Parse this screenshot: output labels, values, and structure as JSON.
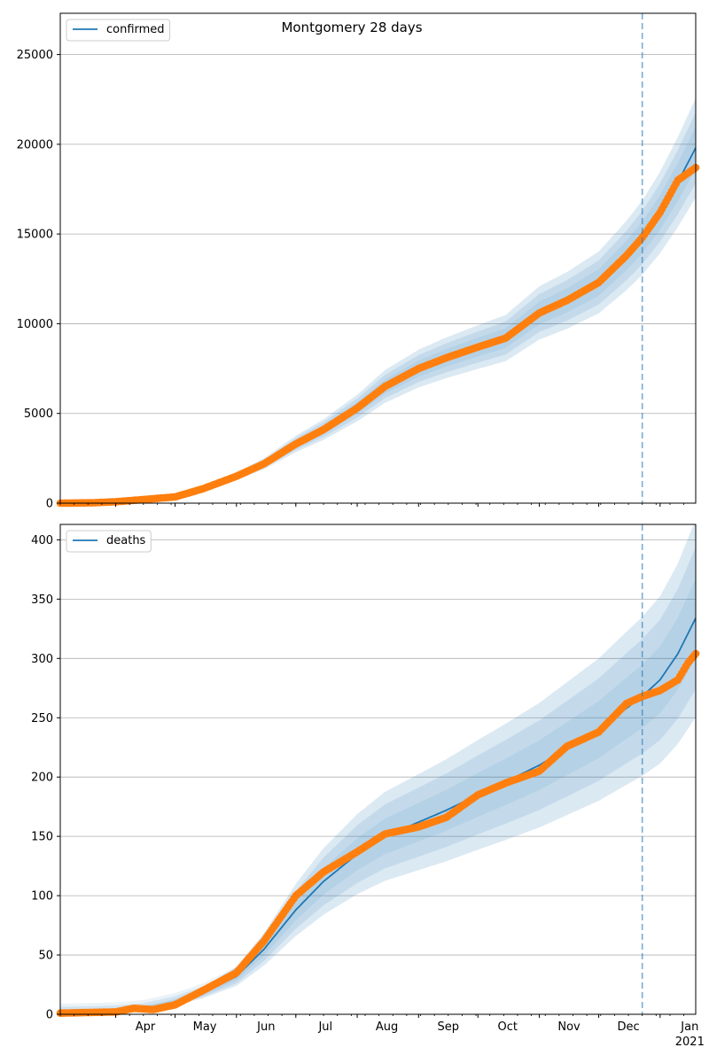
{
  "title": "Montgomery 28 days",
  "colors": {
    "model": "#1f77b4",
    "observed": "#ff7f0e",
    "band": "#1f77b4",
    "grid": "#b0b0b0",
    "forecast_line": "#1f77b4"
  },
  "x_axis": {
    "month_labels": [
      "Apr",
      "May",
      "Jun",
      "Jul",
      "Aug",
      "Sep",
      "Oct",
      "Nov",
      "Dec",
      "Jan"
    ],
    "year_label": "2021",
    "start_date": "2020-03-04",
    "end_date": "2021-01-19",
    "forecast_start": "2020-12-23"
  },
  "chart_data": [
    {
      "type": "line",
      "title": "Montgomery 28 days",
      "legend": "confirmed",
      "legend_position": "top-left",
      "grid": "horizontal",
      "ylim": [
        0,
        27300
      ],
      "yticks": [
        0,
        5000,
        10000,
        15000,
        20000,
        25000
      ],
      "model_points": [
        [
          "2020-03-04",
          0
        ],
        [
          "2020-03-20",
          20
        ],
        [
          "2020-04-01",
          80
        ],
        [
          "2020-04-15",
          200
        ],
        [
          "2020-05-01",
          350
        ],
        [
          "2020-05-15",
          800
        ],
        [
          "2020-06-01",
          1500
        ],
        [
          "2020-06-15",
          2200
        ],
        [
          "2020-07-01",
          3300
        ],
        [
          "2020-07-15",
          4100
        ],
        [
          "2020-08-01",
          5300
        ],
        [
          "2020-08-15",
          6500
        ],
        [
          "2020-09-01",
          7500
        ],
        [
          "2020-09-15",
          8100
        ],
        [
          "2020-10-01",
          8700
        ],
        [
          "2020-10-15",
          9200
        ],
        [
          "2020-11-01",
          10600
        ],
        [
          "2020-11-15",
          11300
        ],
        [
          "2020-12-01",
          12300
        ],
        [
          "2020-12-15",
          13800
        ],
        [
          "2020-12-23",
          14800
        ],
        [
          "2021-01-01",
          16200
        ],
        [
          "2021-01-10",
          17900
        ],
        [
          "2021-01-19",
          19800
        ]
      ],
      "band_halfwidth_fraction": [
        0.06,
        0.1,
        0.14
      ],
      "observed_points": [
        [
          "2020-03-04",
          0
        ],
        [
          "2020-03-20",
          20
        ],
        [
          "2020-04-01",
          80
        ],
        [
          "2020-04-15",
          200
        ],
        [
          "2020-05-01",
          350
        ],
        [
          "2020-05-15",
          800
        ],
        [
          "2020-06-01",
          1500
        ],
        [
          "2020-06-15",
          2200
        ],
        [
          "2020-07-01",
          3300
        ],
        [
          "2020-07-15",
          4100
        ],
        [
          "2020-08-01",
          5300
        ],
        [
          "2020-08-15",
          6500
        ],
        [
          "2020-09-01",
          7500
        ],
        [
          "2020-09-15",
          8100
        ],
        [
          "2020-10-01",
          8700
        ],
        [
          "2020-10-15",
          9200
        ],
        [
          "2020-11-01",
          10600
        ],
        [
          "2020-11-15",
          11300
        ],
        [
          "2020-12-01",
          12300
        ],
        [
          "2020-12-15",
          13800
        ],
        [
          "2020-12-23",
          14800
        ],
        [
          "2021-01-01",
          16200
        ],
        [
          "2021-01-10",
          18000
        ],
        [
          "2021-01-19",
          18700
        ]
      ]
    },
    {
      "type": "line",
      "legend": "deaths",
      "legend_position": "top-left",
      "grid": "horizontal",
      "ylim": [
        0,
        413
      ],
      "yticks": [
        0,
        50,
        100,
        150,
        200,
        250,
        300,
        350,
        400
      ],
      "model_points": [
        [
          "2020-03-04",
          1
        ],
        [
          "2020-04-01",
          2
        ],
        [
          "2020-04-15",
          4
        ],
        [
          "2020-05-01",
          10
        ],
        [
          "2020-05-15",
          18
        ],
        [
          "2020-06-01",
          32
        ],
        [
          "2020-06-15",
          55
        ],
        [
          "2020-07-01",
          88
        ],
        [
          "2020-07-15",
          112
        ],
        [
          "2020-08-01",
          135
        ],
        [
          "2020-08-15",
          150
        ],
        [
          "2020-09-01",
          162
        ],
        [
          "2020-09-15",
          172
        ],
        [
          "2020-10-01",
          185
        ],
        [
          "2020-10-15",
          196
        ],
        [
          "2020-11-01",
          210
        ],
        [
          "2020-11-15",
          224
        ],
        [
          "2020-12-01",
          240
        ],
        [
          "2020-12-15",
          258
        ],
        [
          "2020-12-23",
          268
        ],
        [
          "2021-01-01",
          282
        ],
        [
          "2021-01-10",
          304
        ],
        [
          "2021-01-19",
          334
        ]
      ],
      "band_halfwidth_fraction": [
        0.1,
        0.18,
        0.25
      ],
      "band_floor": 8,
      "observed_points": [
        [
          "2020-03-04",
          1
        ],
        [
          "2020-04-01",
          2
        ],
        [
          "2020-04-10",
          5
        ],
        [
          "2020-04-20",
          4
        ],
        [
          "2020-05-01",
          8
        ],
        [
          "2020-05-15",
          20
        ],
        [
          "2020-06-01",
          35
        ],
        [
          "2020-06-15",
          62
        ],
        [
          "2020-07-01",
          100
        ],
        [
          "2020-07-15",
          120
        ],
        [
          "2020-08-01",
          137
        ],
        [
          "2020-08-15",
          152
        ],
        [
          "2020-09-01",
          158
        ],
        [
          "2020-09-15",
          166
        ],
        [
          "2020-10-01",
          185
        ],
        [
          "2020-10-15",
          195
        ],
        [
          "2020-11-01",
          205
        ],
        [
          "2020-11-15",
          226
        ],
        [
          "2020-12-01",
          238
        ],
        [
          "2020-12-15",
          262
        ],
        [
          "2020-12-23",
          268
        ],
        [
          "2021-01-01",
          273
        ],
        [
          "2021-01-10",
          282
        ],
        [
          "2021-01-15",
          296
        ],
        [
          "2021-01-19",
          304
        ]
      ]
    }
  ]
}
